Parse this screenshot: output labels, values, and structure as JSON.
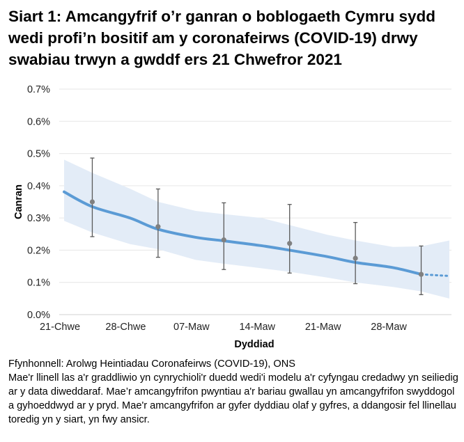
{
  "title": "Siart 1: Amcangyfrif o’r ganran o boblogaeth Cymru sydd wedi profi’n bositif am y coronafeirws (COVID-19) drwy swabiau trwyn a gwddf ers 21 Chwefror 2021",
  "notes": {
    "source": "Ffynhonnell: Arolwg Heintiadau Coronafeirws (COVID-19), ONS",
    "body": "Mae'r llinell las a'r graddliwio yn cynrychioli'r duedd wedi'i modelu a'r cyfyngau credadwy yn seiliedig ar y data diweddaraf. Mae’r amcangyfrifon pwyntiau a'r bariau gwallau yn amcangyfrifon swyddogol a gyhoeddwyd ar y pryd. Mae'r amcangyfrifon ar gyfer dyddiau olaf y gyfres, a ddangosir fel llinellau toredig yn y siart, yn fwy ansicr."
  },
  "chart_data": {
    "type": "line",
    "xlabel": "Dyddiad",
    "ylabel": "Canran",
    "ylim": [
      0,
      0.7
    ],
    "yticks": [
      "0.0%",
      "0.1%",
      "0.2%",
      "0.3%",
      "0.4%",
      "0.5%",
      "0.6%",
      "0.7%"
    ],
    "xticks": [
      {
        "date": "2021-02-21",
        "label": "21-Chwe"
      },
      {
        "date": "2021-02-28",
        "label": "28-Chwe"
      },
      {
        "date": "2021-03-07",
        "label": "07-Maw"
      },
      {
        "date": "2021-03-14",
        "label": "14-Maw"
      },
      {
        "date": "2021-03-21",
        "label": "21-Maw"
      },
      {
        "date": "2021-03-28",
        "label": "28-Maw"
      }
    ],
    "xlim": [
      "2021-02-21",
      "2021-04-03"
    ],
    "grid": true,
    "colors": {
      "model": "#5b9bd5",
      "band": "#e3ecf7",
      "points": "#808080",
      "errorbars": "#595959",
      "grid": "#e6e6e6"
    },
    "model": [
      {
        "date": "2021-02-21",
        "value": 0.381,
        "lower": 0.291,
        "upper": 0.481
      },
      {
        "date": "2021-02-24",
        "value": 0.335,
        "lower": 0.255,
        "upper": 0.44
      },
      {
        "date": "2021-02-28",
        "value": 0.3,
        "lower": 0.219,
        "upper": 0.391
      },
      {
        "date": "2021-03-03",
        "value": 0.265,
        "lower": 0.203,
        "upper": 0.35
      },
      {
        "date": "2021-03-07",
        "value": 0.24,
        "lower": 0.17,
        "upper": 0.322
      },
      {
        "date": "2021-03-10",
        "value": 0.229,
        "lower": 0.158,
        "upper": 0.312
      },
      {
        "date": "2021-03-14",
        "value": 0.214,
        "lower": 0.144,
        "upper": 0.3
      },
      {
        "date": "2021-03-17",
        "value": 0.2,
        "lower": 0.133,
        "upper": 0.278
      },
      {
        "date": "2021-03-21",
        "value": 0.18,
        "lower": 0.115,
        "upper": 0.248
      },
      {
        "date": "2021-03-24",
        "value": 0.162,
        "lower": 0.1,
        "upper": 0.23
      },
      {
        "date": "2021-03-28",
        "value": 0.146,
        "lower": 0.086,
        "upper": 0.21
      },
      {
        "date": "2021-03-31",
        "value": 0.125,
        "lower": 0.072,
        "upper": 0.212
      },
      {
        "date": "2021-04-03",
        "value": 0.12,
        "lower": 0.05,
        "upper": 0.23
      }
    ],
    "model_dashed_from": "2021-03-31",
    "points": [
      {
        "date": "2021-02-24",
        "value": 0.35,
        "lower": 0.242,
        "upper": 0.486
      },
      {
        "date": "2021-03-03",
        "value": 0.273,
        "lower": 0.178,
        "upper": 0.39
      },
      {
        "date": "2021-03-10",
        "value": 0.232,
        "lower": 0.14,
        "upper": 0.347
      },
      {
        "date": "2021-03-17",
        "value": 0.221,
        "lower": 0.129,
        "upper": 0.342
      },
      {
        "date": "2021-03-24",
        "value": 0.175,
        "lower": 0.096,
        "upper": 0.286
      },
      {
        "date": "2021-03-31",
        "value": 0.125,
        "lower": 0.062,
        "upper": 0.213
      }
    ]
  }
}
